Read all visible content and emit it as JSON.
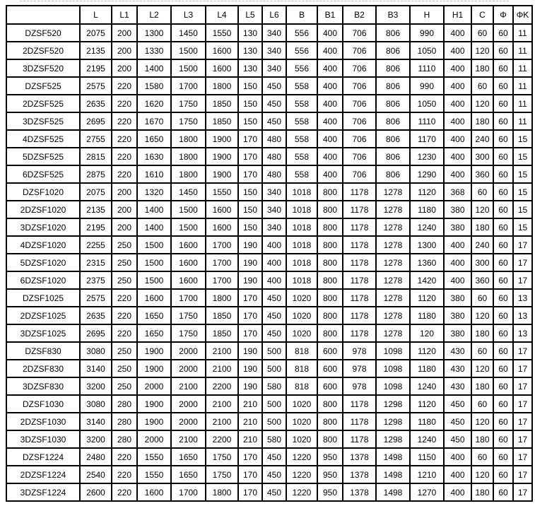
{
  "colors": {
    "background": "#ffffff",
    "border": "#000000",
    "text": "#000000"
  },
  "table": {
    "columns": [
      "",
      "L",
      "L1",
      "L2",
      "L3",
      "L4",
      "L5",
      "L6",
      "B",
      "B1",
      "B2",
      "B3",
      "H",
      "H1",
      "C",
      "Φ",
      "ΦK"
    ],
    "rows": [
      {
        "model": "DZSF520",
        "values": [
          "2075",
          "200",
          "1300",
          "1450",
          "1550",
          "130",
          "340",
          "556",
          "400",
          "706",
          "806",
          "990",
          "400",
          "60",
          "60",
          "11"
        ]
      },
      {
        "model": "2DZSF520",
        "values": [
          "2135",
          "200",
          "1330",
          "1500",
          "1600",
          "130",
          "340",
          "556",
          "400",
          "706",
          "806",
          "1050",
          "400",
          "120",
          "60",
          "11"
        ]
      },
      {
        "model": "3DZSF520",
        "values": [
          "2195",
          "200",
          "1400",
          "1500",
          "1600",
          "130",
          "340",
          "556",
          "400",
          "706",
          "806",
          "1110",
          "400",
          "180",
          "60",
          "11"
        ]
      },
      {
        "model": "DZSF525",
        "values": [
          "2575",
          "220",
          "1580",
          "1700",
          "1800",
          "150",
          "450",
          "558",
          "400",
          "706",
          "806",
          "990",
          "400",
          "60",
          "60",
          "11"
        ]
      },
      {
        "model": "2DZSF525",
        "values": [
          "2635",
          "220",
          "1620",
          "1750",
          "1850",
          "150",
          "450",
          "558",
          "400",
          "706",
          "806",
          "1050",
          "400",
          "120",
          "60",
          "11"
        ]
      },
      {
        "model": "3DZSF525",
        "values": [
          "2695",
          "220",
          "1670",
          "1750",
          "1850",
          "150",
          "450",
          "558",
          "400",
          "706",
          "806",
          "1110",
          "400",
          "180",
          "60",
          "11"
        ]
      },
      {
        "model": "4DZSF525",
        "values": [
          "2755",
          "220",
          "1650",
          "1800",
          "1900",
          "170",
          "480",
          "558",
          "400",
          "706",
          "806",
          "1170",
          "400",
          "240",
          "60",
          "15"
        ]
      },
      {
        "model": "5DZSF525",
        "values": [
          "2815",
          "220",
          "1630",
          "1800",
          "1900",
          "170",
          "480",
          "558",
          "400",
          "706",
          "806",
          "1230",
          "400",
          "300",
          "60",
          "15"
        ]
      },
      {
        "model": "6DZSF525",
        "values": [
          "2875",
          "220",
          "1610",
          "1800",
          "1900",
          "170",
          "480",
          "558",
          "400",
          "706",
          "806",
          "1290",
          "400",
          "360",
          "60",
          "15"
        ]
      },
      {
        "model": "DZSF1020",
        "values": [
          "2075",
          "200",
          "1320",
          "1450",
          "1550",
          "150",
          "340",
          "1018",
          "800",
          "1178",
          "1278",
          "1120",
          "368",
          "60",
          "60",
          "15"
        ]
      },
      {
        "model": "2DZSF1020",
        "values": [
          "2135",
          "200",
          "1400",
          "1500",
          "1600",
          "150",
          "340",
          "1018",
          "800",
          "1178",
          "1278",
          "1180",
          "380",
          "120",
          "60",
          "15"
        ]
      },
      {
        "model": "3DZSF1020",
        "values": [
          "2195",
          "200",
          "1400",
          "1500",
          "1600",
          "150",
          "340",
          "1018",
          "800",
          "1178",
          "1278",
          "1240",
          "380",
          "180",
          "60",
          "15"
        ]
      },
      {
        "model": "4DZSF1020",
        "values": [
          "2255",
          "250",
          "1500",
          "1600",
          "1700",
          "190",
          "400",
          "1018",
          "800",
          "1178",
          "1278",
          "1300",
          "400",
          "240",
          "60",
          "17"
        ]
      },
      {
        "model": "5DZSF1020",
        "values": [
          "2315",
          "250",
          "1500",
          "1600",
          "1700",
          "190",
          "400",
          "1018",
          "800",
          "1178",
          "1278",
          "1360",
          "400",
          "300",
          "60",
          "17"
        ]
      },
      {
        "model": "6DZSF1020",
        "values": [
          "2375",
          "250",
          "1500",
          "1600",
          "1700",
          "190",
          "400",
          "1018",
          "800",
          "1178",
          "1278",
          "1420",
          "400",
          "360",
          "60",
          "17"
        ]
      },
      {
        "model": "DZSF1025",
        "values": [
          "2575",
          "220",
          "1600",
          "1700",
          "1800",
          "170",
          "450",
          "1020",
          "800",
          "1178",
          "1278",
          "1120",
          "380",
          "60",
          "60",
          "13"
        ]
      },
      {
        "model": "2DZSF1025",
        "values": [
          "2635",
          "220",
          "1650",
          "1750",
          "1850",
          "170",
          "450",
          "1020",
          "800",
          "1178",
          "1278",
          "1180",
          "380",
          "120",
          "60",
          "13"
        ]
      },
      {
        "model": "3DZSF1025",
        "values": [
          "2695",
          "220",
          "1650",
          "1750",
          "1850",
          "170",
          "450",
          "1020",
          "800",
          "1178",
          "1278",
          "120",
          "380",
          "180",
          "60",
          "13"
        ]
      },
      {
        "model": "DZSF830",
        "values": [
          "3080",
          "250",
          "1900",
          "2000",
          "2100",
          "190",
          "500",
          "818",
          "600",
          "978",
          "1098",
          "1120",
          "430",
          "60",
          "60",
          "17"
        ]
      },
      {
        "model": "2DZSF830",
        "values": [
          "3140",
          "250",
          "1900",
          "2000",
          "2100",
          "190",
          "500",
          "818",
          "600",
          "978",
          "1098",
          "1180",
          "430",
          "120",
          "60",
          "17"
        ]
      },
      {
        "model": "3DZSF830",
        "values": [
          "3200",
          "250",
          "2000",
          "2100",
          "2200",
          "190",
          "580",
          "818",
          "600",
          "978",
          "1098",
          "1240",
          "430",
          "180",
          "60",
          "17"
        ]
      },
      {
        "model": "DZSF1030",
        "values": [
          "3080",
          "280",
          "1900",
          "2000",
          "2100",
          "210",
          "500",
          "1020",
          "800",
          "1178",
          "1298",
          "1120",
          "450",
          "60",
          "60",
          "17"
        ]
      },
      {
        "model": "2DZSF1030",
        "values": [
          "3140",
          "280",
          "1900",
          "2000",
          "2100",
          "210",
          "500",
          "1020",
          "800",
          "1178",
          "1298",
          "1180",
          "450",
          "120",
          "60",
          "17"
        ]
      },
      {
        "model": "3DZSF1030",
        "values": [
          "3200",
          "280",
          "2000",
          "2100",
          "2200",
          "210",
          "580",
          "1020",
          "800",
          "1178",
          "1298",
          "1240",
          "450",
          "180",
          "60",
          "17"
        ]
      },
      {
        "model": "DZSF1224",
        "values": [
          "2480",
          "220",
          "1550",
          "1650",
          "1750",
          "170",
          "450",
          "1220",
          "950",
          "1378",
          "1498",
          "1150",
          "400",
          "60",
          "60",
          "17"
        ]
      },
      {
        "model": "2DZSF1224",
        "values": [
          "2540",
          "220",
          "1550",
          "1650",
          "1750",
          "170",
          "450",
          "1220",
          "950",
          "1378",
          "1498",
          "1210",
          "400",
          "120",
          "60",
          "17"
        ]
      },
      {
        "model": "3DZSF1224",
        "values": [
          "2600",
          "220",
          "1600",
          "1700",
          "1800",
          "170",
          "450",
          "1220",
          "950",
          "1378",
          "1498",
          "1270",
          "400",
          "180",
          "60",
          "17"
        ]
      }
    ]
  }
}
